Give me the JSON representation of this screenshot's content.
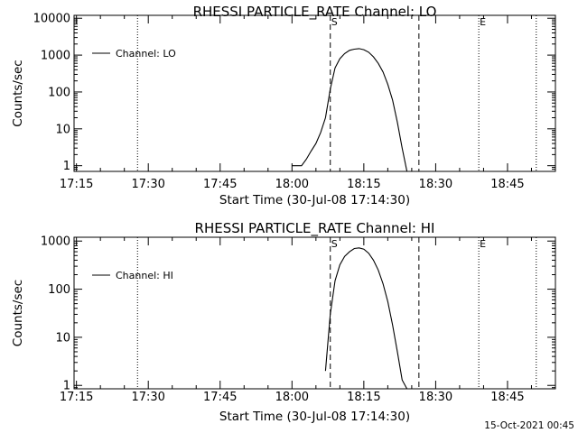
{
  "footer_timestamp": "15-Oct-2021 00:45",
  "chart_data": [
    {
      "type": "line",
      "title": "RHESSI PARTICLE_RATE Channel: LO",
      "xlabel": "Start Time (30-Jul-08 17:14:30)",
      "ylabel": "Counts/sec",
      "x_ticks": [
        "17:15",
        "17:30",
        "17:45",
        "18:00",
        "18:15",
        "18:30",
        "18:45"
      ],
      "y_ticks": [
        "1",
        "10",
        "100",
        "1000",
        "10000"
      ],
      "y_scale": "log",
      "ylim": [
        0.7,
        12000
      ],
      "xlim_minutes_from_17_14_30": [
        0,
        100.5
      ],
      "grid": false,
      "legend": {
        "position": "top-left",
        "label": "Channel: LO"
      },
      "markers": [
        {
          "label": "S",
          "time": "18:08:00",
          "style": "dashed"
        },
        {
          "label": "",
          "time": "18:26:30",
          "style": "dashed"
        },
        {
          "label": "",
          "time": "17:27:45",
          "style": "dotted"
        },
        {
          "label": "E",
          "time": "18:39:00",
          "style": "dotted"
        },
        {
          "label": "",
          "time": "18:51:00",
          "style": "dotted"
        }
      ],
      "series": [
        {
          "name": "Channel: LO",
          "x": [
            "18:00:00",
            "18:02:00",
            "18:03:00",
            "18:04:00",
            "18:05:00",
            "18:06:00",
            "18:07:00",
            "18:08:00",
            "18:09:00",
            "18:10:00",
            "18:11:00",
            "18:12:00",
            "18:13:00",
            "18:14:00",
            "18:15:00",
            "18:16:00",
            "18:17:00",
            "18:18:00",
            "18:19:00",
            "18:20:00",
            "18:21:00",
            "18:22:00",
            "18:23:00",
            "18:24:00"
          ],
          "values": [
            1,
            1,
            1.5,
            2.5,
            4,
            8,
            20,
            120,
            450,
            800,
            1100,
            1350,
            1450,
            1500,
            1400,
            1200,
            900,
            600,
            350,
            160,
            60,
            15,
            3,
            0.7
          ]
        }
      ]
    },
    {
      "type": "line",
      "title": "RHESSI PARTICLE_RATE Channel: HI",
      "xlabel": "Start Time (30-Jul-08 17:14:30)",
      "ylabel": "Counts/sec",
      "x_ticks": [
        "17:15",
        "17:30",
        "17:45",
        "18:00",
        "18:15",
        "18:30",
        "18:45"
      ],
      "y_ticks": [
        "1",
        "10",
        "100",
        "1000"
      ],
      "y_scale": "log",
      "ylim": [
        0.85,
        1200
      ],
      "xlim_minutes_from_17_14_30": [
        0,
        100.5
      ],
      "grid": false,
      "legend": {
        "position": "top-left",
        "label": "Channel: HI"
      },
      "markers": [
        {
          "label": "S",
          "time": "18:08:00",
          "style": "dashed"
        },
        {
          "label": "",
          "time": "18:26:30",
          "style": "dashed"
        },
        {
          "label": "",
          "time": "17:27:45",
          "style": "dotted"
        },
        {
          "label": "E",
          "time": "18:39:00",
          "style": "dotted"
        },
        {
          "label": "",
          "time": "18:51:00",
          "style": "dotted"
        }
      ],
      "series": [
        {
          "name": "Channel: HI",
          "x": [
            "18:07:00",
            "18:08:00",
            "18:09:00",
            "18:10:00",
            "18:11:00",
            "18:12:00",
            "18:13:00",
            "18:14:00",
            "18:15:00",
            "18:16:00",
            "18:17:00",
            "18:18:00",
            "18:19:00",
            "18:20:00",
            "18:21:00",
            "18:22:00",
            "18:23:00",
            "18:24:00"
          ],
          "values": [
            2,
            30,
            150,
            320,
            480,
            600,
            700,
            720,
            680,
            560,
            400,
            250,
            130,
            55,
            18,
            5,
            1.3,
            0.8
          ]
        }
      ]
    }
  ]
}
